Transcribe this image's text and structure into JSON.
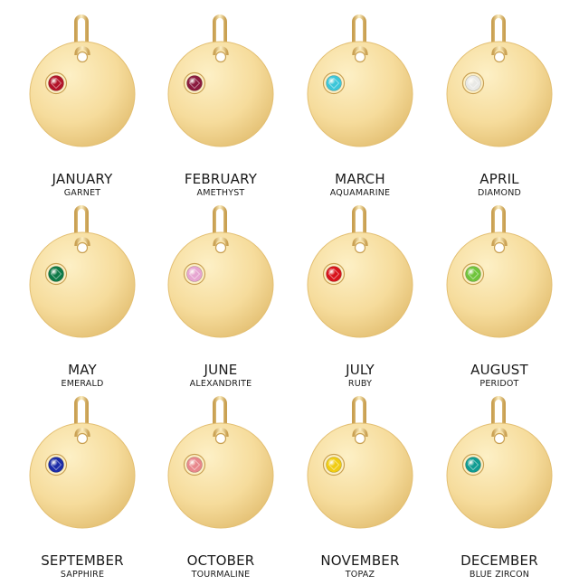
{
  "charms": [
    {
      "month": "JANUARY",
      "stone": "GARNET",
      "gem_color": "#b3142a"
    },
    {
      "month": "FEBRUARY",
      "stone": "AMETHYST",
      "gem_color": "#8a1a3e"
    },
    {
      "month": "MARCH",
      "stone": "AQUAMARINE",
      "gem_color": "#3cc6d9"
    },
    {
      "month": "APRIL",
      "stone": "DIAMOND",
      "gem_color": "#e9e9e6"
    },
    {
      "month": "MAY",
      "stone": "EMERALD",
      "gem_color": "#0e7a48"
    },
    {
      "month": "JUNE",
      "stone": "ALEXANDRITE",
      "gem_color": "#e6a5d1"
    },
    {
      "month": "JULY",
      "stone": "RUBY",
      "gem_color": "#d8121b"
    },
    {
      "month": "AUGUST",
      "stone": "PERIDOT",
      "gem_color": "#6fc43c"
    },
    {
      "month": "SEPTEMBER",
      "stone": "SAPPHIRE",
      "gem_color": "#1c2ca8"
    },
    {
      "month": "OCTOBER",
      "stone": "TOURMALINE",
      "gem_color": "#e8878c"
    },
    {
      "month": "NOVEMBER",
      "stone": "TOPAZ",
      "gem_color": "#f0cc12"
    },
    {
      "month": "DECEMBER",
      "stone": "BLUE ZIRCON",
      "gem_color": "#0f9c92"
    }
  ],
  "colors": {
    "gold_light": "#fdf0c6",
    "gold_mid": "#f6dc9c",
    "gold_dark": "#e3bf72",
    "ring_dark": "#c9a052"
  }
}
